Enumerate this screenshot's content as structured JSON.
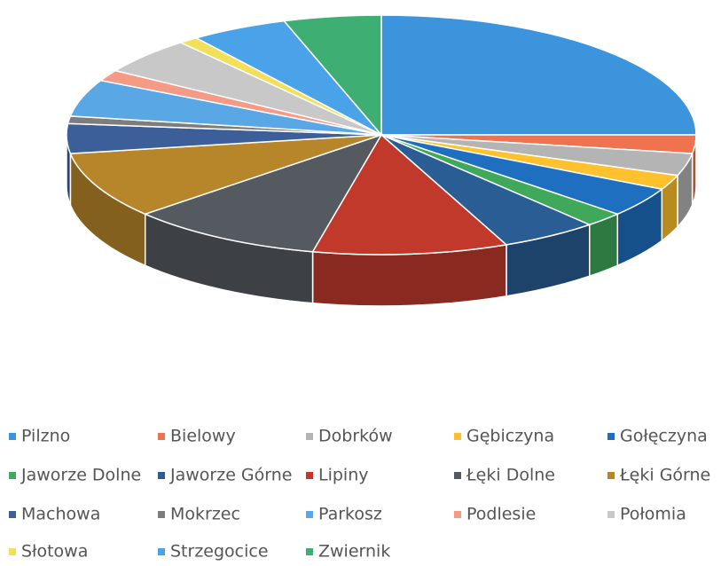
{
  "chart_data": {
    "type": "pie",
    "categories": [
      "Pilzno",
      "Bielowy",
      "Dobrków",
      "Gębiczyna",
      "Gołęczyna",
      "Jaworze Dolne",
      "Jaworze Górne",
      "Lipiny",
      "Łęki Dolne",
      "Łęki Górne",
      "Machowa",
      "Mokrzec",
      "Parkosz",
      "Podlesie",
      "Połomia",
      "Słotowa",
      "Strzegocice",
      "Zwiernik"
    ],
    "values": [
      25,
      2.5,
      3,
      2,
      4,
      2,
      5,
      10,
      10,
      9,
      4,
      1,
      5,
      1.5,
      5,
      1,
      5,
      5
    ],
    "colors": [
      "#3b94dc",
      "#f0734f",
      "#b4b4b4",
      "#ffc12e",
      "#1f6fc0",
      "#3fa85a",
      "#2a5d93",
      "#c0392b",
      "#555a60",
      "#b8862a",
      "#3c5f9a",
      "#7d7d7d",
      "#5aa7e6",
      "#f59a85",
      "#c8c8c8",
      "#f2e05a",
      "#4aa3e8",
      "#3fae72"
    ],
    "legend": "bottom"
  }
}
